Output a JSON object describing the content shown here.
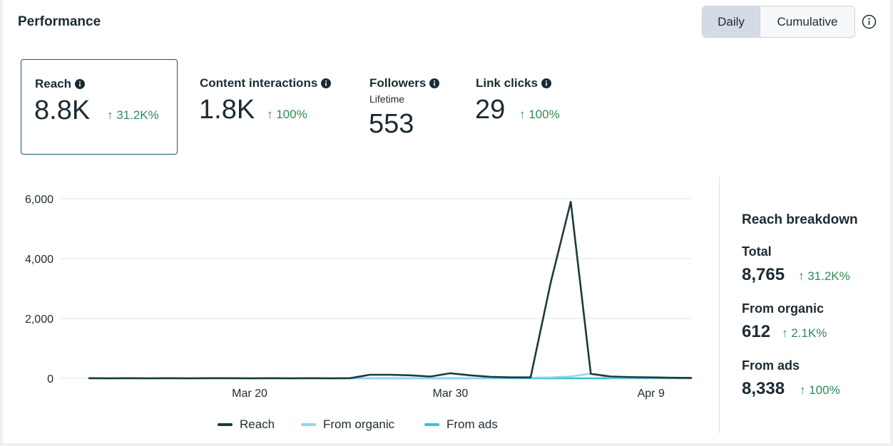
{
  "header": {
    "title": "Performance",
    "toggle": {
      "daily_label": "Daily",
      "cumulative_label": "Cumulative"
    }
  },
  "metrics": [
    {
      "label": "Reach",
      "value": "8.8K",
      "delta": "↑ 31.2K%"
    },
    {
      "label": "Content interactions",
      "value": "1.8K",
      "delta": "↑ 100%"
    },
    {
      "label": "Followers",
      "sublabel": "Lifetime",
      "value": "553"
    },
    {
      "label": "Link clicks",
      "value": "29",
      "delta": "↑ 100%"
    }
  ],
  "breakdown": {
    "title": "Reach breakdown",
    "items": [
      {
        "label": "Total",
        "value": "8,765",
        "delta": "↑ 31.2K%"
      },
      {
        "label": "From organic",
        "value": "612",
        "delta": "↑ 2.1K%"
      },
      {
        "label": "From ads",
        "value": "8,338",
        "delta": "↑ 100%"
      }
    ]
  },
  "colors": {
    "reach": "#1c3b3a",
    "organic": "#8ed3f0",
    "ads": "#36c6c0",
    "positive": "#2e8a58",
    "selected_border": "#1a5676"
  },
  "chart_data": {
    "type": "line",
    "title": "",
    "xlabel": "",
    "ylabel": "",
    "ylim": [
      0,
      6000
    ],
    "yticks": [
      {
        "value": 0,
        "label": "0"
      },
      {
        "value": 2000,
        "label": "2,000"
      },
      {
        "value": 4000,
        "label": "4,000"
      },
      {
        "value": 6000,
        "label": "6,000"
      }
    ],
    "xticks": [
      {
        "index": 8,
        "label": "Mar 20"
      },
      {
        "index": 18,
        "label": "Mar 30"
      },
      {
        "index": 28,
        "label": "Apr 9"
      }
    ],
    "x": [
      "Mar 12",
      "Mar 13",
      "Mar 14",
      "Mar 15",
      "Mar 16",
      "Mar 17",
      "Mar 18",
      "Mar 19",
      "Mar 20",
      "Mar 21",
      "Mar 22",
      "Mar 23",
      "Mar 24",
      "Mar 25",
      "Mar 26",
      "Mar 27",
      "Mar 28",
      "Mar 29",
      "Mar 30",
      "Mar 31",
      "Apr 1",
      "Apr 2",
      "Apr 3",
      "Apr 4",
      "Apr 5",
      "Apr 6",
      "Apr 7",
      "Apr 8",
      "Apr 9",
      "Apr 10",
      "Apr 11"
    ],
    "series": [
      {
        "name": "Reach",
        "color_key": "reach",
        "values": [
          5,
          0,
          5,
          0,
          5,
          0,
          5,
          5,
          0,
          5,
          0,
          5,
          0,
          5,
          120,
          120,
          100,
          60,
          170,
          100,
          50,
          30,
          30,
          3200,
          5900,
          150,
          60,
          40,
          30,
          20,
          15
        ]
      },
      {
        "name": "From organic",
        "color_key": "organic",
        "values": [
          5,
          0,
          5,
          0,
          5,
          0,
          5,
          5,
          0,
          5,
          0,
          5,
          0,
          5,
          5,
          5,
          5,
          5,
          5,
          5,
          5,
          10,
          20,
          30,
          60,
          160,
          20,
          15,
          10,
          5,
          5
        ]
      },
      {
        "name": "From ads",
        "color_key": "ads",
        "values": [
          0,
          0,
          0,
          0,
          0,
          0,
          0,
          0,
          0,
          0,
          0,
          0,
          0,
          0,
          0,
          0,
          0,
          0,
          0,
          0,
          0,
          0,
          0,
          0,
          0,
          0,
          0,
          0,
          0,
          0,
          0
        ]
      }
    ],
    "grid": true,
    "legend_position": "bottom"
  }
}
